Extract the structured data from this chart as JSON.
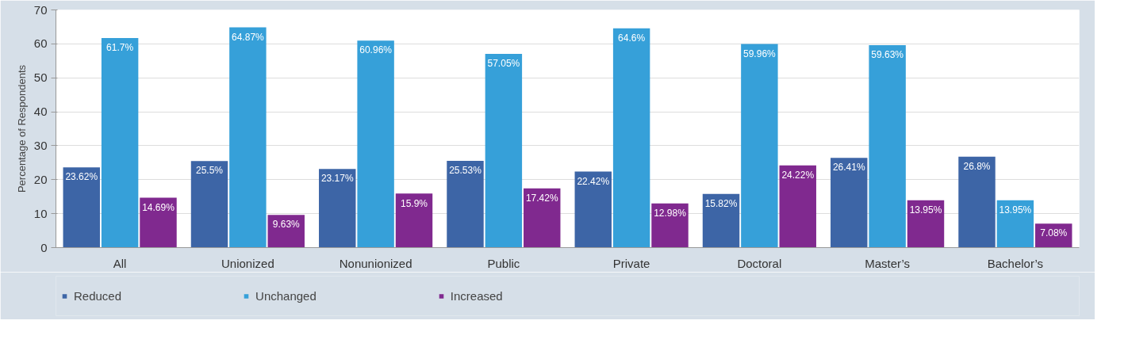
{
  "chart_data": {
    "type": "bar",
    "ylabel": "Percentage of Respondents",
    "categories": [
      "All",
      "Unionized",
      "Nonunionized",
      "Public",
      "Private",
      "Doctoral",
      "Master’s",
      "Bachelor’s"
    ],
    "ylim": [
      0,
      70
    ],
    "yticks": [
      0,
      10,
      20,
      30,
      40,
      50,
      60,
      70
    ],
    "grid": "y",
    "legend": "bottom",
    "series": [
      {
        "name": "Reduced",
        "color": "#3d65a6",
        "values": [
          23.62,
          25.5,
          23.17,
          25.53,
          22.42,
          15.82,
          26.41,
          26.8
        ],
        "value_labels": [
          "23.62%",
          "25.5%",
          "23.17%",
          "25.53%",
          "22.42%",
          "15.82%",
          "26.41%",
          "26.8%"
        ]
      },
      {
        "name": "Unchanged",
        "color": "#36a0d9",
        "values": [
          61.7,
          64.87,
          60.96,
          57.05,
          64.6,
          59.96,
          59.63,
          13.95
        ],
        "value_labels": [
          "61.7%",
          "64.87%",
          "60.96%",
          "57.05%",
          "64.6%",
          "59.96%",
          "59.63%",
          "13.95%"
        ]
      },
      {
        "name": "Increased",
        "color": "#80298f",
        "values": [
          14.69,
          9.63,
          15.9,
          17.42,
          12.98,
          24.22,
          13.95,
          7.08
        ],
        "value_labels": [
          "14.69%",
          "9.63%",
          "15.9%",
          "17.42%",
          "12.98%",
          "24.22%",
          "13.95%",
          "7.08%"
        ]
      }
    ]
  }
}
